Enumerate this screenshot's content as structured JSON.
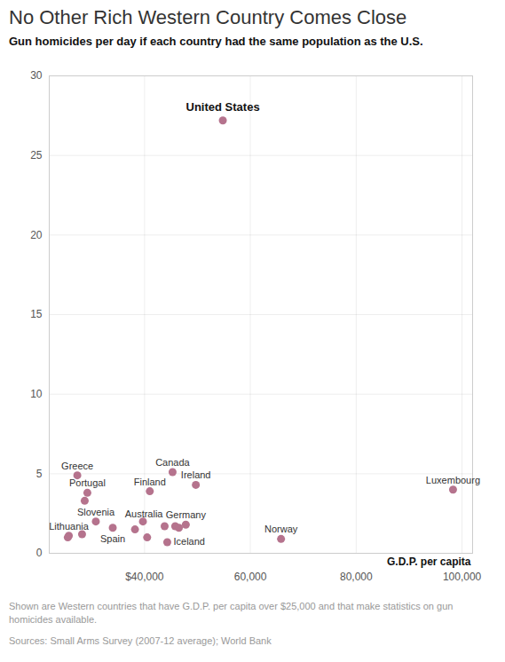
{
  "chart_data": {
    "type": "scatter",
    "title": "No Other Rich Western Country Comes Close",
    "subtitle": "Gun homicides per day if each country had the same population as the U.S.",
    "x_label": "G.D.P. per capita",
    "caption": "Shown are Western countries that have G.D.P. per capita over $25,000 and that make statistics on gun homicides available.",
    "source": "Sources:  Small Arms Survey (2007-12 average); World Bank",
    "x": [
      54800,
      27300,
      29200,
      28700,
      45300,
      49700,
      41000,
      98300,
      65800,
      30800,
      34000,
      25700,
      25500,
      28200,
      47800,
      43800,
      44300,
      38200,
      39700,
      40500,
      45800,
      46500
    ],
    "y": [
      27.2,
      4.9,
      3.8,
      3.3,
      5.1,
      4.3,
      3.9,
      4.0,
      0.9,
      2.0,
      1.6,
      1.1,
      1.0,
      1.2,
      1.8,
      1.7,
      0.7,
      1.5,
      2.0,
      1.0,
      1.7,
      1.6
    ],
    "labels": [
      "United States",
      "Greece",
      "Portugal",
      null,
      "Canada",
      "Ireland",
      "Finland",
      "Luxembourg",
      "Norway",
      "Slovenia",
      "Spain",
      "Lithuania",
      null,
      null,
      "Germany",
      "Australia",
      "Iceland",
      null,
      null,
      null,
      null,
      null
    ],
    "color": "#b5738d",
    "xlim": [
      22000,
      102000
    ],
    "ylim": [
      0,
      30
    ],
    "xticks": [
      {
        "value": 40000,
        "label": "$40,000"
      },
      {
        "value": 60000,
        "label": "60,000"
      },
      {
        "value": 80000,
        "label": "80,000"
      },
      {
        "value": 100000,
        "label": "100,000"
      }
    ],
    "yticks": [
      0,
      5,
      10,
      15,
      20,
      25,
      30
    ],
    "grid": true
  }
}
